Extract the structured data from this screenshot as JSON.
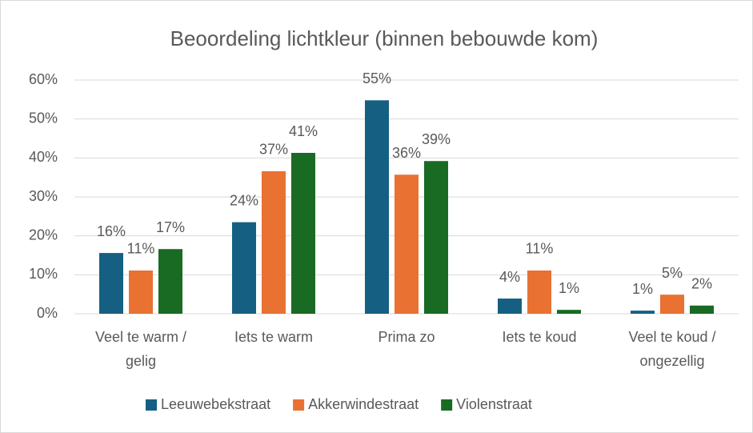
{
  "chart_data": {
    "type": "bar",
    "title": "Beoordeling lichtkleur (binnen bebouwde kom)",
    "categories": [
      "Veel te warm / gelig",
      "Iets te warm",
      "Prima zo",
      "Iets te koud",
      "Veel te koud / ongezellig"
    ],
    "series": [
      {
        "name": "Leeuwebekstraat",
        "color": "#156082",
        "values": [
          15.6,
          23.5,
          54.8,
          3.9,
          0.8
        ],
        "value_labels": [
          "16%",
          "24%",
          "55%",
          "4%",
          "1%"
        ]
      },
      {
        "name": "Akkerwindestraat",
        "color": "#e97132",
        "values": [
          11.1,
          36.6,
          35.7,
          11.1,
          4.9
        ],
        "value_labels": [
          "11%",
          "37%",
          "36%",
          "11%",
          "5%"
        ]
      },
      {
        "name": "Violenstraat",
        "color": "#196b24",
        "values": [
          16.6,
          41.3,
          39.2,
          1.0,
          2.1
        ],
        "value_labels": [
          "17%",
          "41%",
          "39%",
          "1%",
          "2%"
        ]
      }
    ],
    "ylim": [
      0,
      60
    ],
    "yticks": [
      {
        "value": 0,
        "label": "0%"
      },
      {
        "value": 10,
        "label": "10%"
      },
      {
        "value": 20,
        "label": "20%"
      },
      {
        "value": 30,
        "label": "30%"
      },
      {
        "value": 40,
        "label": "40%"
      },
      {
        "value": 50,
        "label": "50%"
      },
      {
        "value": 60,
        "label": "60%"
      }
    ],
    "grid": true,
    "legend": "bottom"
  }
}
